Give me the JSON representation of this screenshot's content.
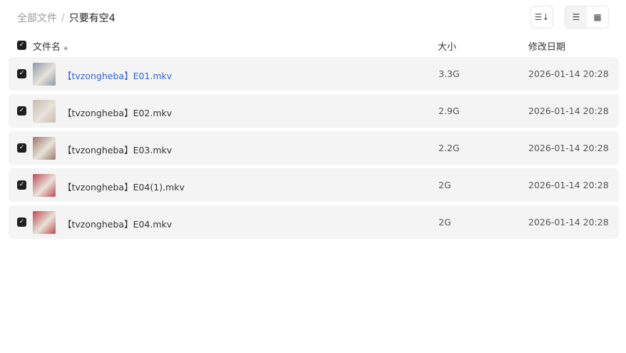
{
  "breadcrumb": {
    "root": "全部文件",
    "separator": "/",
    "current": "只要有空4"
  },
  "toolbar": {
    "sort_icon": "sort-icon",
    "list_icon": "list-view-icon",
    "grid_icon": "grid-view-icon",
    "active_view": "list"
  },
  "header": {
    "name": "文件名",
    "size": "大小",
    "date": "修改日期",
    "all_checked": true
  },
  "files": [
    {
      "name": "【tvzongheba】E01.mkv",
      "size": "3.3G",
      "date": "2026-01-14 20:28",
      "checked": true,
      "thumb_color": "#8a9aa8"
    },
    {
      "name": "【tvzongheba】E02.mkv",
      "size": "2.9G",
      "date": "2026-01-14 20:28",
      "checked": true,
      "thumb_color": "#c8bcb0"
    },
    {
      "name": "【tvzongheba】E03.mkv",
      "size": "2.2G",
      "date": "2026-01-14 20:28",
      "checked": true,
      "thumb_color": "#9a7a6a"
    },
    {
      "name": "【tvzongheba】E04(1).mkv",
      "size": "2G",
      "date": "2026-01-14 20:28",
      "checked": true,
      "thumb_color": "#c04a50"
    },
    {
      "name": "【tvzongheba】E04.mkv",
      "size": "2G",
      "date": "2026-01-14 20:28",
      "checked": true,
      "thumb_color": "#c04a50"
    }
  ]
}
